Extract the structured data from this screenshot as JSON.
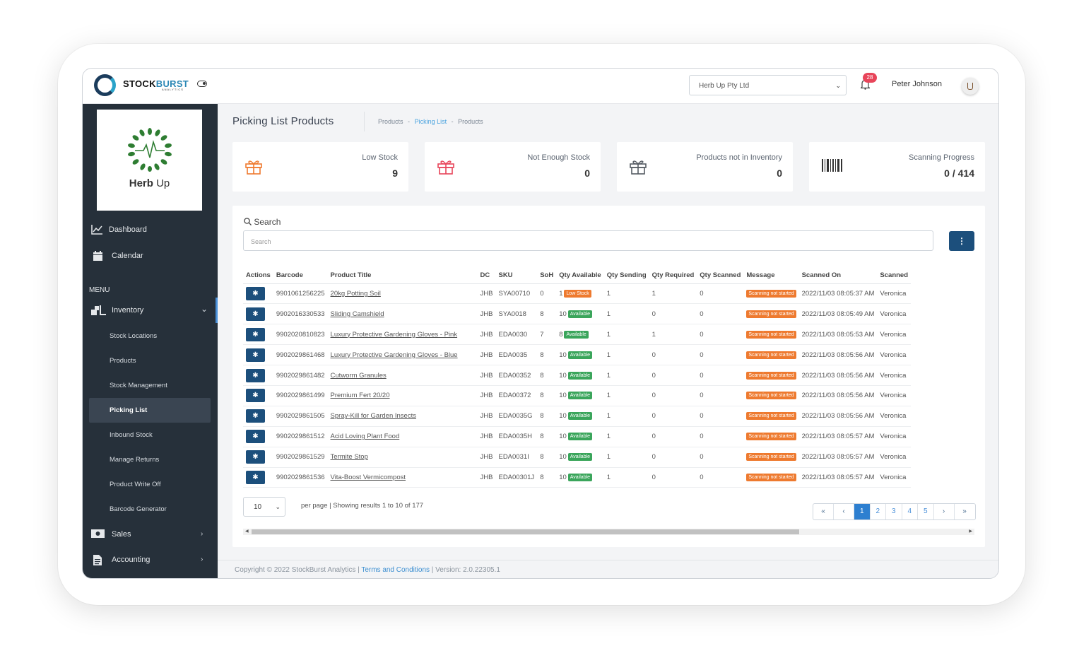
{
  "app": {
    "logo_main": "STOCK",
    "logo_accent": "BURST",
    "logo_sub": "ANALYTICS"
  },
  "header": {
    "company_select": "Herb Up Pty Ltd",
    "notification_count": "28",
    "user_name": "Peter Johnson"
  },
  "sidebar": {
    "brand_name_bold": "Herb",
    "brand_name_rest": " Up",
    "dashboard": "Dashboard",
    "calendar": "Calendar",
    "menu_title": "MENU",
    "inventory": "Inventory",
    "inventory_items": [
      "Stock Locations",
      "Products",
      "Stock Management",
      "Picking List",
      "Inbound Stock",
      "Manage Returns",
      "Product Write Off",
      "Barcode Generator"
    ],
    "sales": "Sales",
    "accounting": "Accounting"
  },
  "page": {
    "title": "Picking List Products",
    "breadcrumbs": [
      "Products",
      "Picking List",
      "Products"
    ]
  },
  "cards": [
    {
      "title": "Low Stock",
      "value": "9",
      "icon": "gift-icon",
      "color": "#ee7a2f"
    },
    {
      "title": "Not Enough Stock",
      "value": "0",
      "icon": "gift-icon",
      "color": "#e8455a"
    },
    {
      "title": "Products not in Inventory",
      "value": "0",
      "icon": "gift-icon",
      "color": "#555b63"
    },
    {
      "title": "Scanning Progress",
      "value": "0 / 414",
      "icon": "barcode-icon",
      "color": "#333333"
    }
  ],
  "search": {
    "label": "Search",
    "placeholder": "Search"
  },
  "table": {
    "headers": [
      "Actions",
      "Barcode",
      "Product Title",
      "DC",
      "SKU",
      "SoH",
      "Qty Available",
      "Qty Sending",
      "Qty Required",
      "Qty Scanned",
      "Message",
      "Scanned On",
      "Scanned"
    ],
    "rows": [
      {
        "barcode": "9901061256225",
        "title": "20kg Potting Soil",
        "dc": "JHB",
        "sku": "SYA00710",
        "soh": "0",
        "avail": "1",
        "status": "Low Stock",
        "sending": "1",
        "required": "1",
        "scanned": "0",
        "message": "Scanning not started",
        "scanned_on": "2022/11/03 08:05:37 AM",
        "by": "Veronica"
      },
      {
        "barcode": "9902016330533",
        "title": "Sliding Camshield",
        "dc": "JHB",
        "sku": "SYA0018",
        "soh": "8",
        "avail": "10",
        "status": "Available",
        "sending": "1",
        "required": "0",
        "scanned": "0",
        "message": "Scanning not started",
        "scanned_on": "2022/11/03 08:05:49 AM",
        "by": "Veronica"
      },
      {
        "barcode": "9902020810823",
        "title": "Luxury Protective Gardening Gloves - Pink",
        "dc": "JHB",
        "sku": "EDA0030",
        "soh": "7",
        "avail": "8",
        "status": "Available",
        "sending": "1",
        "required": "1",
        "scanned": "0",
        "message": "Scanning not started",
        "scanned_on": "2022/11/03 08:05:53 AM",
        "by": "Veronica"
      },
      {
        "barcode": "9902029861468",
        "title": "Luxury Protective Gardening Gloves - Blue",
        "dc": "JHB",
        "sku": "EDA0035",
        "soh": "8",
        "avail": "10",
        "status": "Available",
        "sending": "1",
        "required": "0",
        "scanned": "0",
        "message": "Scanning not started",
        "scanned_on": "2022/11/03 08:05:56 AM",
        "by": "Veronica"
      },
      {
        "barcode": "9902029861482",
        "title": "Cutworm Granules",
        "dc": "JHB",
        "sku": "EDA00352",
        "soh": "8",
        "avail": "10",
        "status": "Available",
        "sending": "1",
        "required": "0",
        "scanned": "0",
        "message": "Scanning not started",
        "scanned_on": "2022/11/03 08:05:56 AM",
        "by": "Veronica"
      },
      {
        "barcode": "9902029861499",
        "title": "Premium Fert 20/20",
        "dc": "JHB",
        "sku": "EDA00372",
        "soh": "8",
        "avail": "10",
        "status": "Available",
        "sending": "1",
        "required": "0",
        "scanned": "0",
        "message": "Scanning not started",
        "scanned_on": "2022/11/03 08:05:56 AM",
        "by": "Veronica"
      },
      {
        "barcode": "9902029861505",
        "title": "Spray-Kill for Garden Insects",
        "dc": "JHB",
        "sku": "EDA0035G",
        "soh": "8",
        "avail": "10",
        "status": "Available",
        "sending": "1",
        "required": "0",
        "scanned": "0",
        "message": "Scanning not started",
        "scanned_on": "2022/11/03 08:05:56 AM",
        "by": "Veronica"
      },
      {
        "barcode": "9902029861512",
        "title": "Acid Loving Plant Food",
        "dc": "JHB",
        "sku": "EDA0035H",
        "soh": "8",
        "avail": "10",
        "status": "Available",
        "sending": "1",
        "required": "0",
        "scanned": "0",
        "message": "Scanning not started",
        "scanned_on": "2022/11/03 08:05:57 AM",
        "by": "Veronica"
      },
      {
        "barcode": "9902029861529",
        "title": "Termite Stop",
        "dc": "JHB",
        "sku": "EDA0031I",
        "soh": "8",
        "avail": "10",
        "status": "Available",
        "sending": "1",
        "required": "0",
        "scanned": "0",
        "message": "Scanning not started",
        "scanned_on": "2022/11/03 08:05:57 AM",
        "by": "Veronica"
      },
      {
        "barcode": "9902029861536",
        "title": "Vita-Boost Vermicompost",
        "dc": "JHB",
        "sku": "EDA00301J",
        "soh": "8",
        "avail": "10",
        "status": "Available",
        "sending": "1",
        "required": "0",
        "scanned": "0",
        "message": "Scanning not started",
        "scanned_on": "2022/11/03 08:05:57 AM",
        "by": "Veronica"
      }
    ]
  },
  "pagination": {
    "per_page_value": "10",
    "info": "per page | Showing results 1 to 10 of 177",
    "first": "«",
    "prev": "‹",
    "pages": [
      "1",
      "2",
      "3",
      "4",
      "5"
    ],
    "next": "›",
    "last": "»"
  },
  "footer": {
    "copyright": "Copyright © 2022 StockBurst Analytics | ",
    "terms": "Terms and Conditions",
    "version": " | Version: 2.0.22305.1"
  }
}
